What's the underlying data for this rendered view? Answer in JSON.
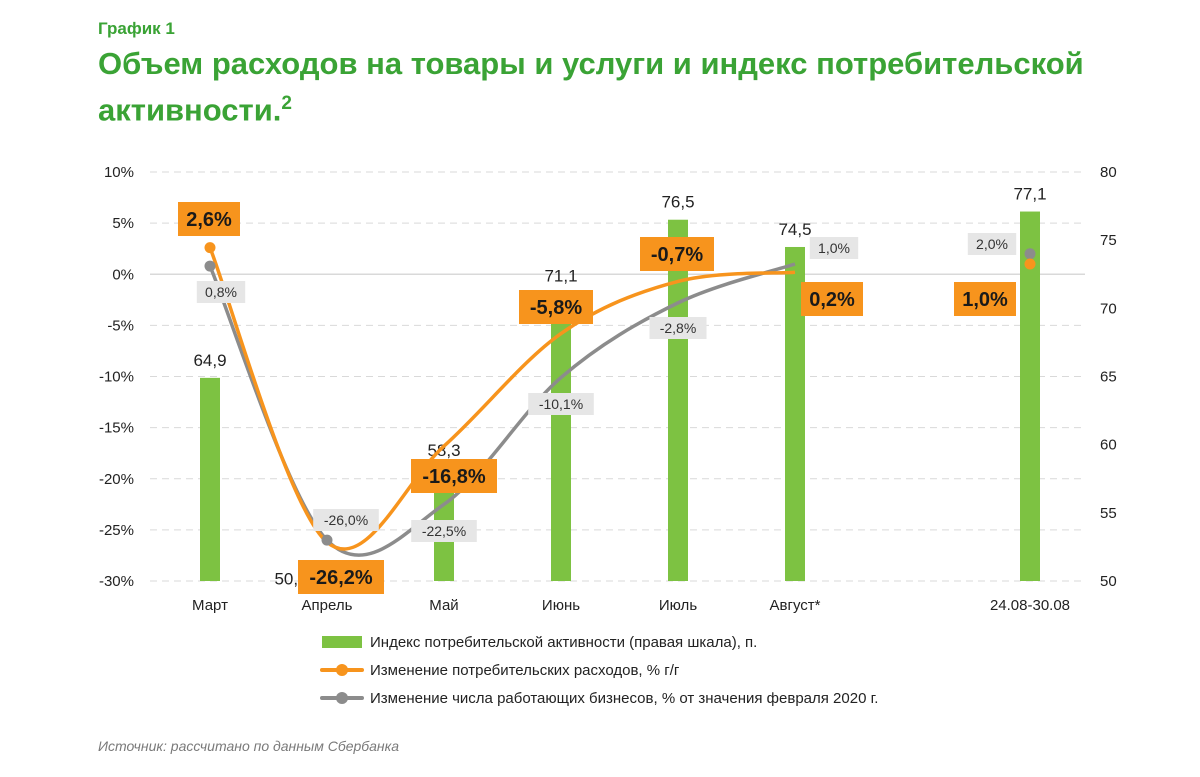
{
  "header": {
    "kicker": "График 1",
    "title": "Объем расходов на товары и услуги и индекс потребительской активности.",
    "title_sup": "2"
  },
  "colors": {
    "brand_green": "#3aa335",
    "bar": "#7dc242",
    "orange": "#f7941d",
    "gray": "#8c8c8c",
    "gray_label_bg": "#e6e6e6",
    "grid": "#d9d9d9"
  },
  "chart_data": {
    "type": "bar+line",
    "categories": [
      "Март",
      "Апрель",
      "Май",
      "Июнь",
      "Июль",
      "Август*",
      "24.08-30.08"
    ],
    "y_left": {
      "ylim": [
        -30,
        10
      ],
      "ticks": [
        "10%",
        "5%",
        "0%",
        "-5%",
        "-10%",
        "-15%",
        "-20%",
        "-25%",
        "-30%"
      ]
    },
    "y_right": {
      "ylim": [
        50,
        80
      ],
      "ticks": [
        "80",
        "75",
        "70",
        "65",
        "60",
        "55",
        "50"
      ]
    },
    "grid": true,
    "series": [
      {
        "name": "Индекс потребительской активности (правая шкала), п.",
        "kind": "bar",
        "axis": "right",
        "values": [
          64.9,
          50.2,
          58.3,
          71.1,
          76.5,
          74.5,
          77.1
        ],
        "labels": [
          "64,9",
          "50,2",
          "58,3",
          "71,1",
          "76,5",
          "74,5",
          "77,1"
        ]
      },
      {
        "name": "Изменение потребительских расходов, % г/г",
        "kind": "line",
        "axis": "left",
        "values": [
          2.6,
          -26.2,
          -16.8,
          -5.8,
          -0.7,
          0.2,
          1.0
        ],
        "labels": [
          "2,6%",
          "-26,2%",
          "-16,8%",
          "-5,8%",
          "-0,7%",
          "0,2%",
          "1,0%"
        ]
      },
      {
        "name": "Изменение числа работающих бизнесов, % от значения февраля 2020 г.",
        "kind": "line",
        "axis": "left",
        "values": [
          0.8,
          -26.0,
          -22.5,
          -10.1,
          -2.8,
          1.0,
          2.0
        ],
        "labels": [
          "0,8%",
          "-26,0%",
          "-22,5%",
          "-10,1%",
          "-2,8%",
          "1,0%",
          "2,0%"
        ]
      }
    ],
    "legend": "bottom"
  },
  "source": "Источник: рассчитано по данным Сбербанка"
}
